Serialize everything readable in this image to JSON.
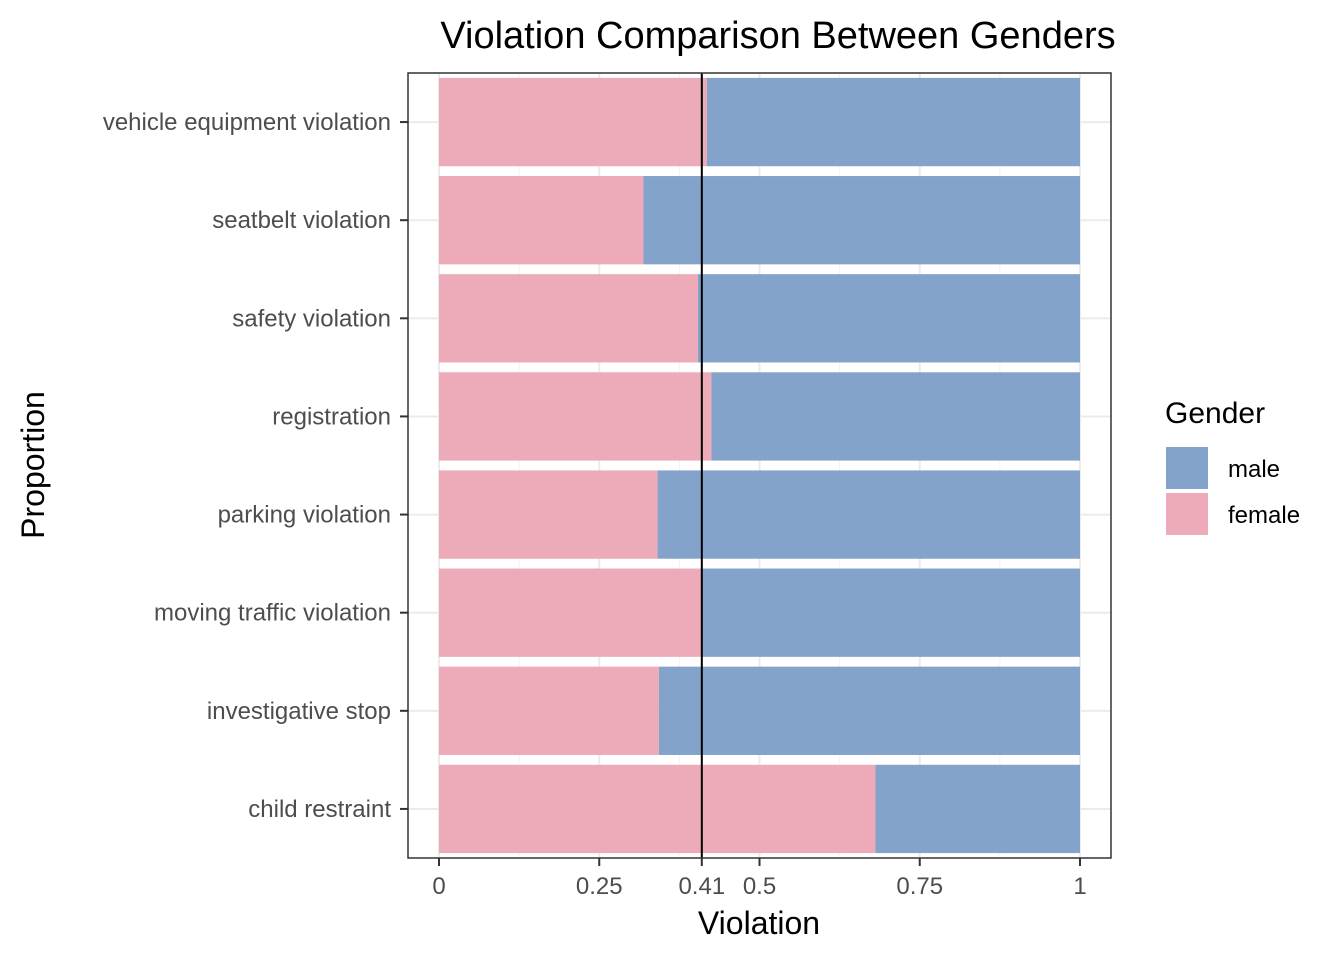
{
  "chart_data": {
    "type": "bar",
    "orientation": "horizontal",
    "stacked": true,
    "title": "Violation Comparison Between Genders",
    "xlabel": "Violation",
    "ylabel": "Proportion",
    "xlim": [
      0,
      1
    ],
    "x_ticks": [
      0,
      0.25,
      0.41,
      0.5,
      0.75,
      1
    ],
    "x_tick_labels": [
      "0",
      "0.25",
      "0.41",
      "0.5",
      "0.75",
      "1"
    ],
    "reference_line": {
      "x": 0.41,
      "color": "#000000"
    },
    "grid": true,
    "categories": [
      "vehicle equipment violation",
      "seatbelt violation",
      "safety violation",
      "registration",
      "parking violation",
      "moving traffic violation",
      "investigative stop",
      "child restraint"
    ],
    "series": [
      {
        "name": "female",
        "color": "#EDAAB8",
        "values": [
          0.418,
          0.319,
          0.404,
          0.425,
          0.341,
          0.411,
          0.343,
          0.681
        ]
      },
      {
        "name": "male",
        "color": "#83A3CA",
        "values": [
          0.582,
          0.681,
          0.596,
          0.575,
          0.659,
          0.589,
          0.657,
          0.319
        ]
      }
    ],
    "legend": {
      "title": "Gender",
      "position": "right",
      "entries": [
        {
          "label": "male",
          "color": "#83A3CA"
        },
        {
          "label": "female",
          "color": "#EDAAB8"
        }
      ]
    }
  }
}
